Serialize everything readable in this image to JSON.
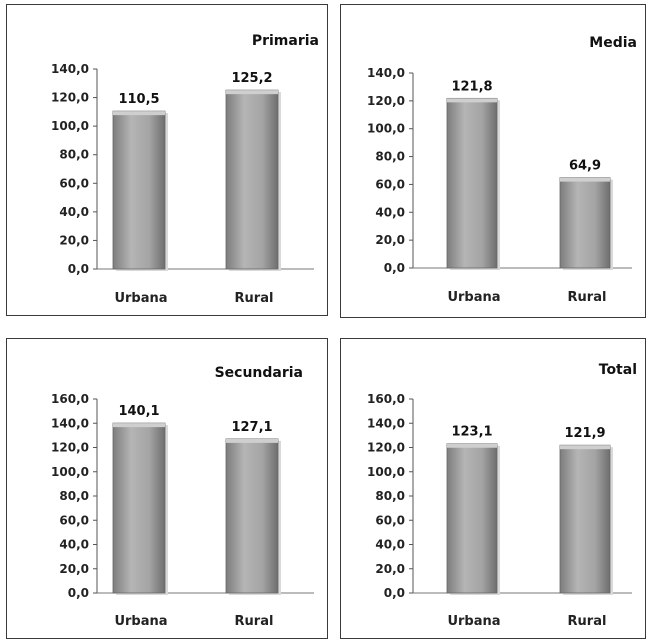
{
  "chart_data": [
    {
      "type": "bar",
      "title": "Primaria",
      "categories": [
        "Urbana",
        "Rural"
      ],
      "values": [
        110.5,
        125.2
      ],
      "value_labels": [
        "110,5",
        "125,2"
      ],
      "yticks": [
        "0,0",
        "20,0",
        "40,0",
        "60,0",
        "80,0",
        "100,0",
        "120,0",
        "140,0"
      ],
      "ylim": [
        0,
        140
      ],
      "xlabel": "",
      "ylabel": "",
      "grid": false,
      "bar_color": "#a9a9a9"
    },
    {
      "type": "bar",
      "title": "Media",
      "categories": [
        "Urbana",
        "Rural"
      ],
      "values": [
        121.8,
        64.9
      ],
      "value_labels": [
        "121,8",
        "64,9"
      ],
      "yticks": [
        "0,0",
        "20,0",
        "40,0",
        "60,0",
        "80,0",
        "100,0",
        "120,0",
        "140,0"
      ],
      "ylim": [
        0,
        140
      ],
      "xlabel": "",
      "ylabel": "",
      "grid": false,
      "bar_color": "#a9a9a9"
    },
    {
      "type": "bar",
      "title": "Secundaria",
      "categories": [
        "Urbana",
        "Rural"
      ],
      "values": [
        140.1,
        127.1
      ],
      "value_labels": [
        "140,1",
        "127,1"
      ],
      "yticks": [
        "0,0",
        "20,0",
        "40,0",
        "60,0",
        "80,0",
        "100,0",
        "120,0",
        "140,0",
        "160,0"
      ],
      "ylim": [
        0,
        160
      ],
      "xlabel": "",
      "ylabel": "",
      "grid": false,
      "bar_color": "#a9a9a9"
    },
    {
      "type": "bar",
      "title": "Total",
      "categories": [
        "Urbana",
        "Rural"
      ],
      "values": [
        123.1,
        121.9
      ],
      "value_labels": [
        "123,1",
        "121,9"
      ],
      "yticks": [
        "0,0",
        "20,0",
        "40,0",
        "60,0",
        "80,0",
        "100,0",
        "120,0",
        "140,0",
        "160,0"
      ],
      "ylim": [
        0,
        160
      ],
      "xlabel": "",
      "ylabel": "",
      "grid": false,
      "bar_color": "#a9a9a9"
    }
  ]
}
